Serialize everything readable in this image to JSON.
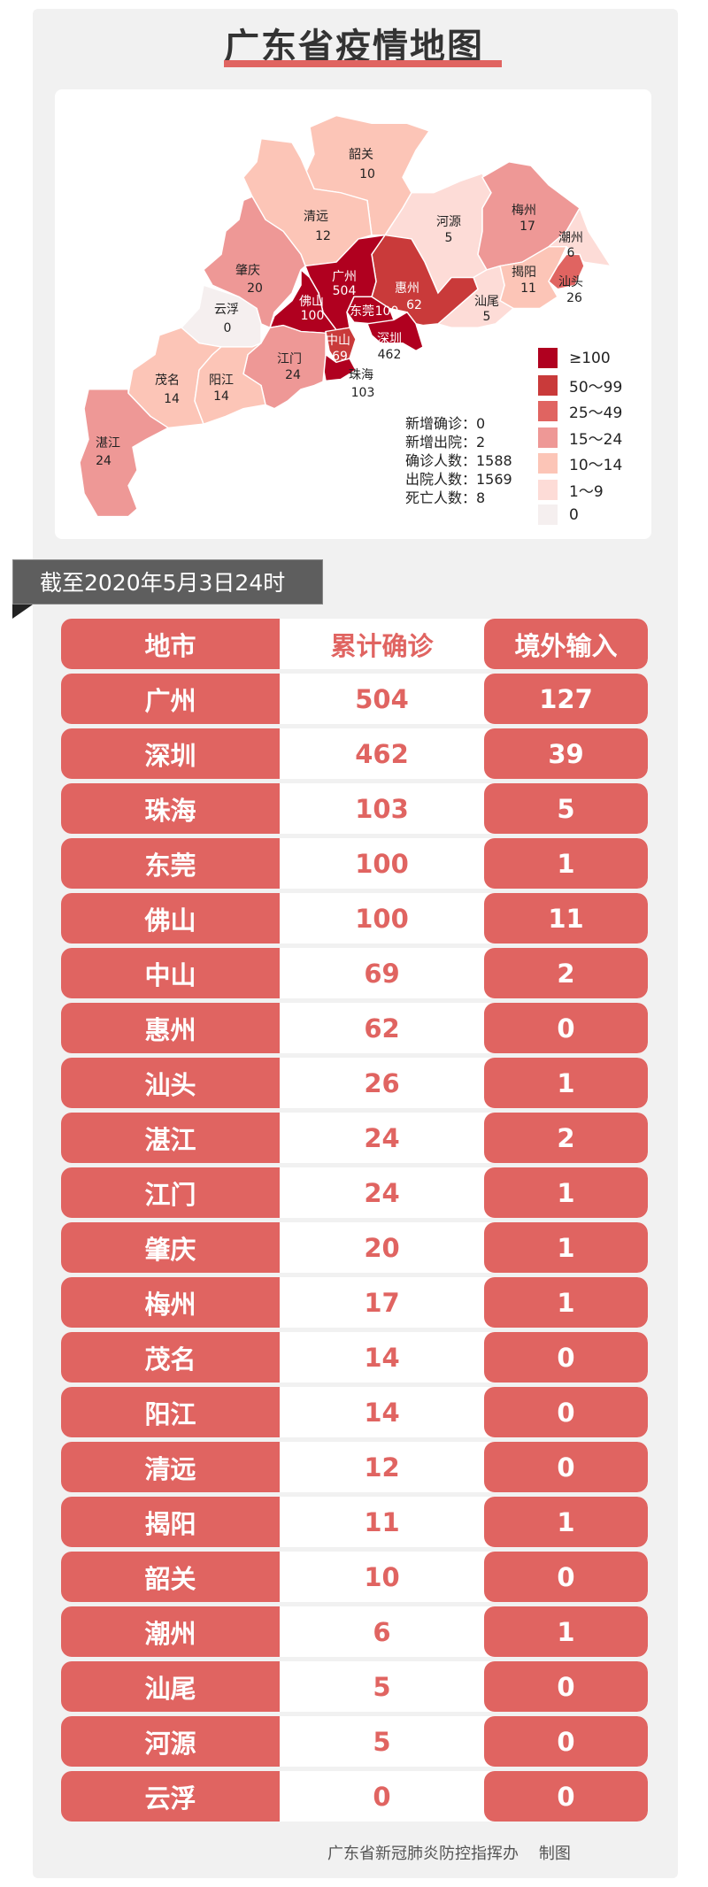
{
  "title": "广东省疫情地图",
  "map": {
    "regions": [
      {
        "name": "韶关",
        "value": "10",
        "tier": 4
      },
      {
        "name": "清远",
        "value": "12",
        "tier": 4
      },
      {
        "name": "河源",
        "value": "5",
        "tier": 5
      },
      {
        "name": "梅州",
        "value": "17",
        "tier": 3
      },
      {
        "name": "潮州",
        "value": "6",
        "tier": 5
      },
      {
        "name": "揭阳",
        "value": "11",
        "tier": 4
      },
      {
        "name": "汕头",
        "value": "26",
        "tier": 2
      },
      {
        "name": "汕尾",
        "value": "5",
        "tier": 5
      },
      {
        "name": "惠州",
        "value": "62",
        "tier": 1
      },
      {
        "name": "广州",
        "value": "504",
        "tier": 0
      },
      {
        "name": "佛山",
        "value": "100",
        "tier": 0
      },
      {
        "name": "东莞",
        "value": "100",
        "tier": 0
      },
      {
        "name": "深圳",
        "value": "462",
        "tier": 0
      },
      {
        "name": "中山",
        "value": "69",
        "tier": 1
      },
      {
        "name": "珠海",
        "value": "103",
        "tier": 0
      },
      {
        "name": "江门",
        "value": "24",
        "tier": 3
      },
      {
        "name": "肇庆",
        "value": "20",
        "tier": 3
      },
      {
        "name": "云浮",
        "value": "0",
        "tier": 6
      },
      {
        "name": "茂名",
        "value": "14",
        "tier": 4
      },
      {
        "name": "阳江",
        "value": "14",
        "tier": 4
      },
      {
        "name": "湛江",
        "value": "24",
        "tier": 3
      }
    ],
    "legend": [
      {
        "label": "≥100",
        "color": "#b0001f"
      },
      {
        "label": "50～99",
        "color": "#c93a3a"
      },
      {
        "label": "25～49",
        "color": "#e06461"
      },
      {
        "label": "15～24",
        "color": "#ee9896"
      },
      {
        "label": "10～14",
        "color": "#fcc5b7"
      },
      {
        "label": "1～9",
        "color": "#fddcd7"
      },
      {
        "label": "0",
        "color": "#f5efef"
      }
    ],
    "stats": [
      "新增确诊：0",
      "新增出院：2",
      "确诊人数：1588",
      "出院人数：1569",
      "死亡人数：8"
    ]
  },
  "as_of": "截至2020年5月3日24时",
  "table": {
    "headers": [
      "地市",
      "累计确诊",
      "境外输入"
    ],
    "rows": [
      [
        "广州",
        "504",
        "127"
      ],
      [
        "深圳",
        "462",
        "39"
      ],
      [
        "珠海",
        "103",
        "5"
      ],
      [
        "东莞",
        "100",
        "1"
      ],
      [
        "佛山",
        "100",
        "11"
      ],
      [
        "中山",
        "69",
        "2"
      ],
      [
        "惠州",
        "62",
        "0"
      ],
      [
        "汕头",
        "26",
        "1"
      ],
      [
        "湛江",
        "24",
        "2"
      ],
      [
        "江门",
        "24",
        "1"
      ],
      [
        "肇庆",
        "20",
        "1"
      ],
      [
        "梅州",
        "17",
        "1"
      ],
      [
        "茂名",
        "14",
        "0"
      ],
      [
        "阳江",
        "14",
        "0"
      ],
      [
        "清远",
        "12",
        "0"
      ],
      [
        "揭阳",
        "11",
        "1"
      ],
      [
        "韶关",
        "10",
        "0"
      ],
      [
        "潮州",
        "6",
        "1"
      ],
      [
        "汕尾",
        "5",
        "0"
      ],
      [
        "河源",
        "5",
        "0"
      ],
      [
        "云浮",
        "0",
        "0"
      ]
    ]
  },
  "footer": "广东省新冠肺炎防控指挥办    制图",
  "colors": {
    "accent": "#e06461",
    "banner": "#5e5e5e",
    "panel": "#f1f1f1"
  }
}
